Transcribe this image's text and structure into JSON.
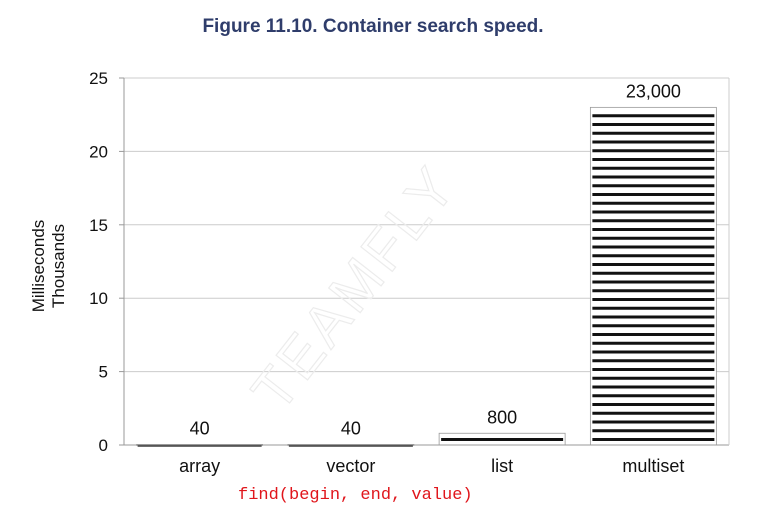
{
  "figure": {
    "title": "Figure 11.10. Container search speed."
  },
  "chart_data": {
    "type": "bar",
    "categories": [
      "array",
      "vector",
      "list",
      "multiset"
    ],
    "values": [
      40,
      40,
      800,
      23000
    ],
    "value_labels": [
      "40",
      "40",
      "800",
      "23,000"
    ],
    "ylabel_lines": [
      "Milliseconds",
      "Thousands"
    ],
    "ylim": [
      0,
      25000
    ],
    "yticks": [
      0,
      5,
      10,
      15,
      20,
      25
    ],
    "ytick_unit": 1000,
    "grid": true,
    "bar_fill": "horizontal-stripes",
    "colors": {
      "bar": "#111111",
      "grid": "#cccccc",
      "axis": "#999999",
      "text": "#111111"
    }
  },
  "caption": {
    "code": "find(begin, end, value)",
    "color": "#e0151b"
  },
  "watermark": {
    "text": "TEAMFLY"
  }
}
